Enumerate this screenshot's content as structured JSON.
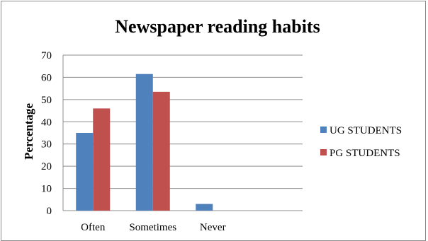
{
  "chart_data": {
    "type": "bar",
    "title": "Newspaper reading habits",
    "xlabel": "",
    "ylabel": "Percentage",
    "categories": [
      "Often",
      "Sometimes",
      "Never"
    ],
    "series": [
      {
        "name": "UG STUDENTS",
        "values": [
          35,
          61.5,
          3
        ],
        "color": "#4f81bd"
      },
      {
        "name": "PG STUDENTS",
        "values": [
          46,
          53.5,
          0
        ],
        "color": "#c0504d"
      }
    ],
    "ylim": [
      0,
      70
    ],
    "yticks": [
      "0",
      "10",
      "20",
      "30",
      "40",
      "50",
      "60",
      "70"
    ],
    "grid": true,
    "legend_position": "right"
  }
}
